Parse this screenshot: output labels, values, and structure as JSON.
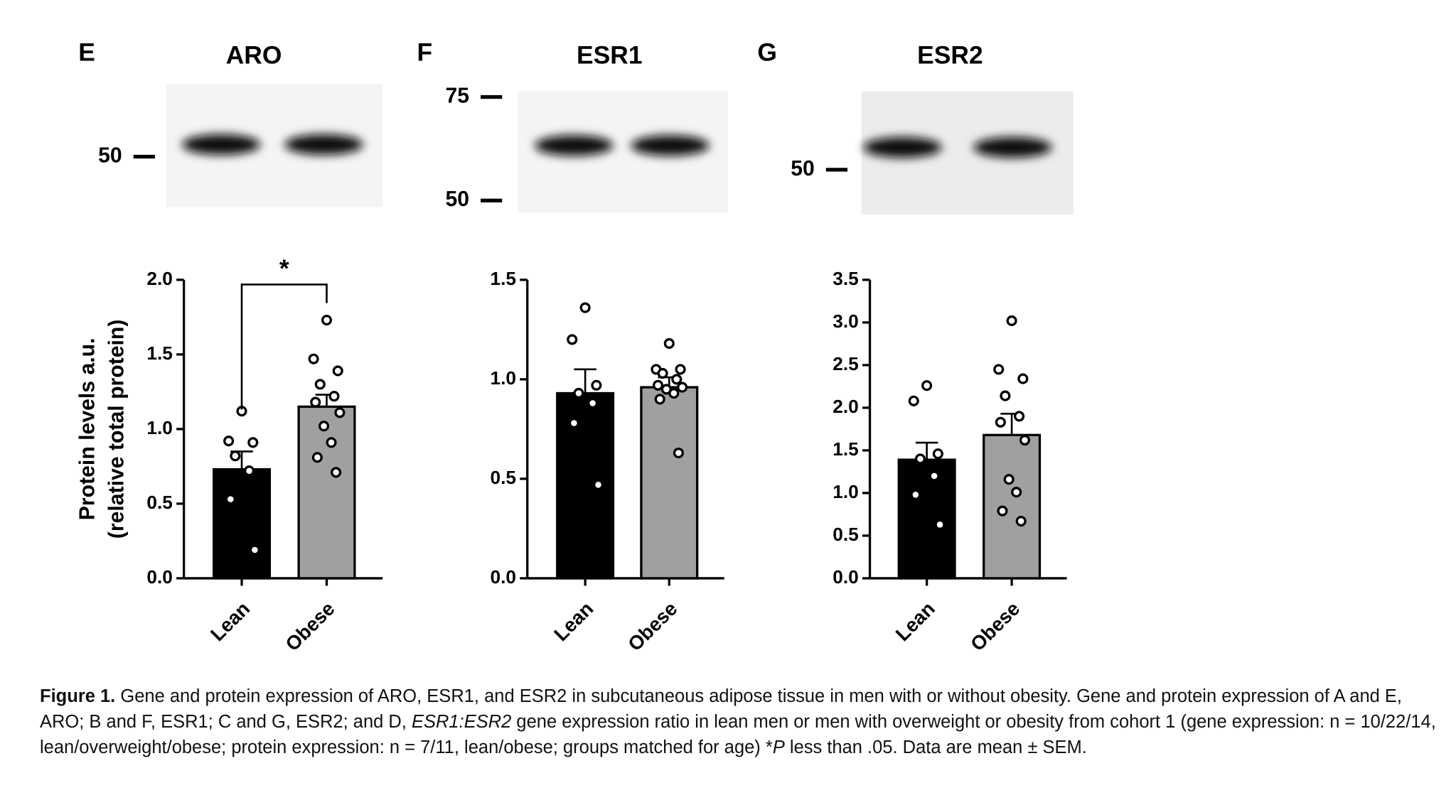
{
  "chart_data": [
    {
      "type": "bar",
      "panel": "E",
      "title": "ARO",
      "blot_markers": [
        50
      ],
      "ylabel": [
        "Protein levels a.u.",
        "(relative total protein)"
      ],
      "categories": [
        "Lean",
        "Obese"
      ],
      "colors": [
        "#000000",
        "#a0a0a0"
      ],
      "values": [
        0.73,
        1.15
      ],
      "errors": [
        0.12,
        0.08
      ],
      "points": [
        [
          1.12,
          0.92,
          0.91,
          0.82,
          0.72,
          0.53,
          0.19
        ],
        [
          1.73,
          1.47,
          1.39,
          1.3,
          1.22,
          1.18,
          1.11,
          1.02,
          0.91,
          0.81,
          0.71
        ]
      ],
      "significance": "*",
      "ylim": [
        0,
        2
      ],
      "yticks": [
        {
          "value": 0,
          "label": "0.0"
        },
        0.5,
        {
          "value": 1,
          "label": "1.0"
        },
        1.5,
        {
          "value": 2,
          "label": "2.0"
        }
      ]
    },
    {
      "type": "bar",
      "panel": "F",
      "title": "ESR1",
      "blot_markers": [
        75,
        50
      ],
      "categories": [
        "Lean",
        "Obese"
      ],
      "colors": [
        "#000000",
        "#a0a0a0"
      ],
      "values": [
        0.93,
        0.96
      ],
      "errors": [
        0.12,
        0.05
      ],
      "points": [
        [
          1.36,
          1.2,
          0.97,
          0.93,
          0.88,
          0.78,
          0.47
        ],
        [
          1.18,
          1.05,
          1.05,
          1.03,
          1.0,
          0.97,
          0.96,
          0.95,
          0.93,
          0.9,
          0.63
        ]
      ],
      "ylim": [
        0,
        1.5
      ],
      "yticks": [
        {
          "value": 0,
          "label": "0.0"
        },
        0.5,
        {
          "value": 1,
          "label": "1.0"
        },
        1.5
      ]
    },
    {
      "type": "bar",
      "panel": "G",
      "title": "ESR2",
      "blot_markers": [
        50
      ],
      "categories": [
        "Lean",
        "Obese"
      ],
      "colors": [
        "#000000",
        "#a0a0a0"
      ],
      "values": [
        1.39,
        1.68
      ],
      "errors": [
        0.2,
        0.25
      ],
      "points": [
        [
          2.26,
          2.08,
          1.46,
          1.4,
          1.2,
          0.98,
          0.63
        ],
        [
          3.02,
          2.45,
          2.34,
          2.14,
          1.9,
          1.83,
          1.62,
          1.16,
          1.01,
          0.79,
          0.67
        ]
      ],
      "ylim": [
        0,
        3.5
      ],
      "yticks": [
        {
          "value": 0,
          "label": "0.0"
        },
        0.5,
        {
          "value": 1,
          "label": "1.0"
        },
        1.5,
        {
          "value": 2,
          "label": "2.0"
        },
        2.5,
        {
          "value": 3,
          "label": "3.0"
        },
        3.5
      ]
    }
  ],
  "caption": {
    "label": "Figure 1.",
    "parts": [
      "Gene and protein expression of ARO, ESR1, and ESR2 in subcutaneous adipose tissue in men with or without obesity. Gene and protein expression of A and E, ARO; B and F, ESR1; C and G, ESR2; and D, ",
      "ESR1:ESR2",
      " gene expression ratio in lean men or men with overweight or obesity from cohort 1 (gene expression: n = 10/22/14, lean/overweight/obese; protein expression: n = 7/11, lean/obese; groups matched for age) *",
      "P",
      " less than .05. Data are mean ± SEM."
    ]
  }
}
